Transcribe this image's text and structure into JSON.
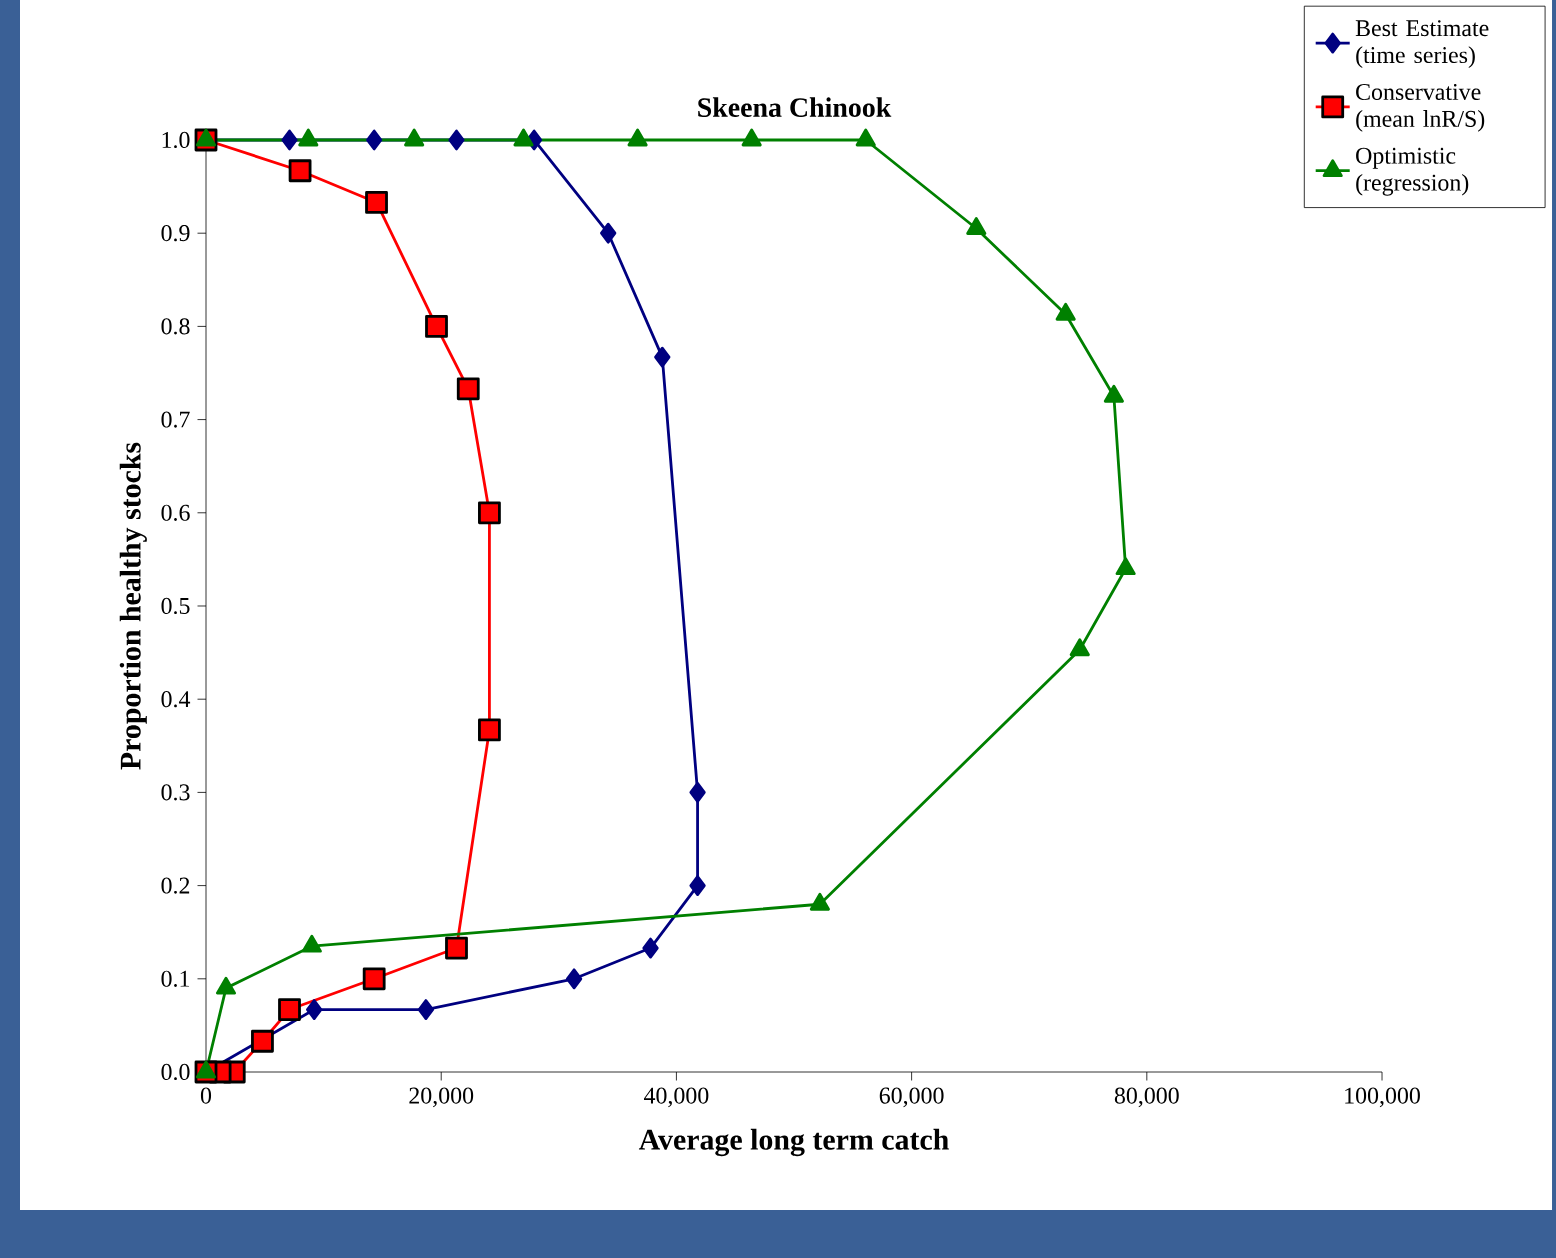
{
  "chart_data": {
    "type": "line",
    "title": "Skeena Chinook",
    "xlabel": "Average long term catch",
    "ylabel": "Proportion healthy stocks",
    "xlim": [
      0,
      100000
    ],
    "ylim": [
      0,
      1
    ],
    "xticks": [
      0,
      {
        "value": 20000,
        "label": "20,000"
      },
      {
        "value": 40000,
        "label": "40,000"
      },
      {
        "value": 60000,
        "label": "60,000"
      },
      {
        "value": 80000,
        "label": "80,000"
      },
      {
        "value": 100000,
        "label": "100,000"
      }
    ],
    "yticks": [
      {
        "value": 0,
        "label": "0.0"
      },
      {
        "value": 0.1,
        "label": "0.1"
      },
      {
        "value": 0.2,
        "label": "0.2"
      },
      {
        "value": 0.3,
        "label": "0.3"
      },
      {
        "value": 0.4,
        "label": "0.4"
      },
      {
        "value": 0.5,
        "label": "0.5"
      },
      {
        "value": 0.6,
        "label": "0.6"
      },
      {
        "value": 0.7,
        "label": "0.7"
      },
      {
        "value": 0.8,
        "label": "0.8"
      },
      {
        "value": 0.9,
        "label": "0.9"
      },
      {
        "value": 1,
        "label": "1.0"
      }
    ],
    "grid": false,
    "legend": "top right",
    "line_style": "solid",
    "series": [
      {
        "name": "Best Estimate (time series)",
        "color": "#000080",
        "marker": "diamond",
        "x": [
          0,
          9200,
          18700,
          31300,
          37800,
          41800,
          41800,
          38800,
          34200,
          27900,
          21300,
          14300,
          7100,
          0
        ],
        "values": [
          0,
          0.067,
          0.067,
          0.1,
          0.133,
          0.2,
          0.3,
          0.767,
          0.9,
          1,
          1,
          1,
          1,
          1
        ]
      },
      {
        "name": "Conservative (mean lnR/S)",
        "color": "#ff0000",
        "marker": "square",
        "x": [
          0,
          8000,
          14500,
          19600,
          22300,
          24100,
          24100,
          21300,
          14300,
          7100,
          4800,
          2400,
          1200,
          0
        ],
        "values": [
          1,
          0.967,
          0.933,
          0.8,
          0.733,
          0.6,
          0.367,
          0.133,
          0.1,
          0.067,
          0.033,
          0,
          0,
          0
        ]
      },
      {
        "name": "Optimistic (regression)",
        "color": "#008000",
        "marker": "triangle",
        "x": [
          0,
          1700,
          9000,
          52200,
          74300,
          78200,
          77200,
          73100,
          65500,
          56100,
          46400,
          36700,
          27000,
          17700,
          8700,
          0
        ],
        "values": [
          0,
          0.09,
          0.135,
          0.18,
          0.453,
          0.54,
          0.725,
          0.813,
          0.905,
          1,
          1,
          1,
          1,
          1,
          1,
          1
        ]
      }
    ]
  }
}
